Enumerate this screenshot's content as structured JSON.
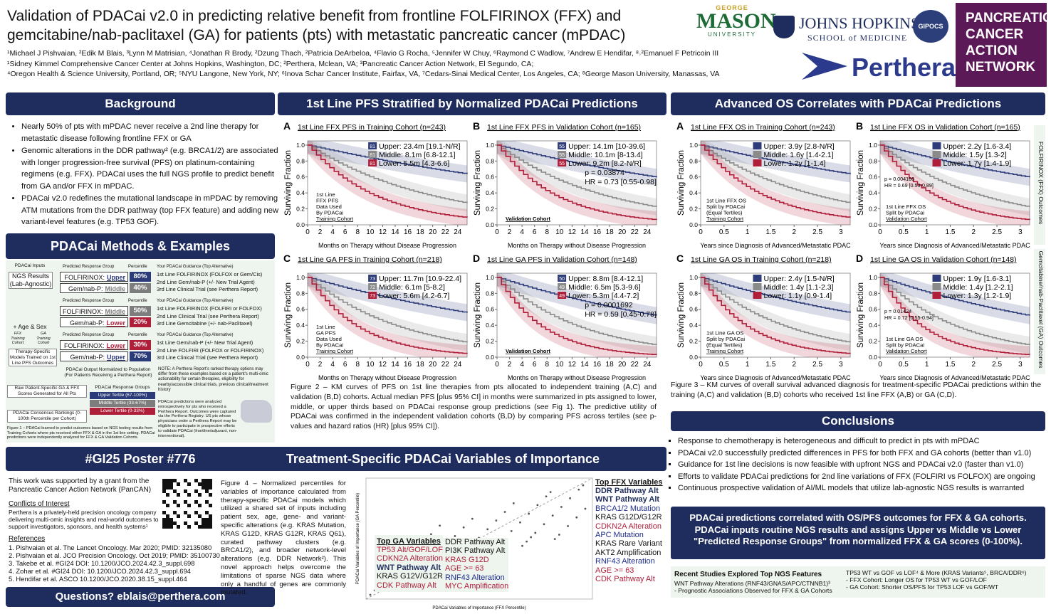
{
  "header": {
    "title_lines": [
      "Validation of PDACai v2.0 in predicting relative benefit from frontline FOLFIRINOX (FFX) and",
      "gemcitabine/nab-paclitaxel (GA) for patients (pts) with metastatic pancreatic cancer (mPDAC)"
    ],
    "author_lines": [
      "¹Michael J Pishvaian, ²Edik M Blais, ³Lynn M Matrisian, ⁴Jonathan R Brody, ²Dzung Thach, ²Patricia DeArbeloa, ⁴Flavio G Rocha, ⁵Jennifer W Chuy, ⁶Raymond C Wadlow, ⁷Andrew E Hendifar, ⁸˒²Emanuel F Petricoin III",
      "¹Sidney Kimmel Comprehensive Cancer Center at Johns Hopkins, Washington, DC; ²Perthera, Mclean, VA; ³Pancreatic Cancer Action Network, El Segundo, CA;",
      "⁴Oregon Health & Science University, Portland, OR; ⁵NYU Langone, New York, NY; ⁶Inova Schar Cancer Institute, Fairfax, VA, ⁷Cedars-Sinai Medical Center, Los Angeles, CA; ⁸George Mason University, Manassas, VA"
    ],
    "logos": {
      "gmu_top": "GEORGE",
      "gmu": "MASON",
      "gmu_sub": "UNIVERSITY",
      "jhu": "JOHNS HOPKINS",
      "jhu_sub": "SCHOOL of MEDICINE",
      "gipocs": "GIPOCS",
      "perthera": "Perthera",
      "pancan": [
        "PANCREATIC",
        "CANCER",
        "ACTION",
        "NETWORK"
      ]
    }
  },
  "background": {
    "title": "Background",
    "bullets": [
      "Nearly 50% of pts with mPDAC never receive a 2nd line therapy for metastatic disease following frontline FFX or GA",
      "Genomic alterations in the DDR pathway² (e.g. BRCA1/2) are associated with longer progression-free survival (PFS) on platinum-containing regimens (e.g. FFX). PDACai uses the full NGS profile to predict benefit from GA and/or FFX in mPDAC.",
      "PDACai v2.0 redefines the mutational landscape in mPDAC by removing ATM mutations from the DDR pathway (top FFX feature) and adding new variant-level features (e.g. TP53 GOF)."
    ]
  },
  "methods": {
    "title": "PDACai Methods & Examples",
    "flow": [
      "PDACai Inputs",
      "NGS Results (Lab-Agnostic)",
      "+ Age & Sex",
      "FFX Training Cohort",
      "GA Training Cohort",
      "Therapy-Specific Models Trained on 1st Line PFS Outcomes",
      "Raw Patient-Specific GA & FFX Scores Generated for All Pts",
      "PDACai Consensus Rankings (0-100th Percentile per Cohort)"
    ],
    "col_headers": [
      "Predicted Response Group",
      "Percentile",
      "Your PDACai Guidance (Top Alternative)"
    ],
    "examples": [
      {
        "rows": [
          {
            "label": "FOLFIRINOX:",
            "group": "Upper",
            "pct": "80%",
            "color": "#2b3a78"
          },
          {
            "label": "Gem/nab-P:",
            "group": "Middle",
            "pct": "40%",
            "color": "#7d7d7d"
          }
        ],
        "guidance": [
          "1st Line FOLFIRINOX (FOLFOX or Gem/Cis)",
          "2nd Line Gem/nab-P (+/- New Trial Agent)",
          "3rd Line Clinical Trial (see Perthera Report)"
        ]
      },
      {
        "rows": [
          {
            "label": "FOLFIRINOX:",
            "group": "Middle",
            "pct": "50%",
            "color": "#7d7d7d"
          },
          {
            "label": "Gem/nab-P:",
            "group": "Lower",
            "pct": "20%",
            "color": "#b01f3a"
          }
        ],
        "guidance": [
          "1st Line FOLFIRINOX (FOLFIRI or FOLFOX)",
          "2nd Line Clinical Trial (see Perthera Report)",
          "3rd Line Gemcitabine (+/- nab-Paclitaxel)"
        ]
      },
      {
        "rows": [
          {
            "label": "FOLFIRINOX:",
            "group": "Lower",
            "pct": "30%",
            "color": "#b01f3a"
          },
          {
            "label": "Gem/nab-P:",
            "group": "Upper",
            "pct": "70%",
            "color": "#2b3a78"
          }
        ],
        "guidance": [
          "1st Line Gem/nab-P (+/- New Trial Agent)",
          "2nd Line FOLFIRI (FOLFOX or FOLFIRINOX)",
          "3rd Line Clinical Trial (see Perthera Report)"
        ]
      }
    ],
    "output_note": "PDACai Output Normalized to Population (For Patients Receiving a Perthera Report)",
    "groups_title": "PDACai Response Groups",
    "groups": [
      {
        "text": "Upper Tertile (67-100%)",
        "color": "#2b3a78"
      },
      {
        "text": "Middle Tertile (33-67%)",
        "color": "#7d7d7d"
      },
      {
        "text": "Lower Tertile (0-33%)",
        "color": "#b01f3a"
      }
    ],
    "note": "NOTE: A Perthera Report's ranked therapy options may differ from these examples based on a patient's multi-omic actionability for certain therapies, eligibility for nearby/accessible clinical trials, previous clinical/treatment history",
    "predictions_note": "PDACai predictions were analyzed retrospectively for pts who received a Perthera Report. Outcomes were captured via the Perthera Registry. US pts whose physicians order a Perthera Report may be eligible to participate in prospective efforts to validate PDACai (frontline/adjuvant, non-interventional).",
    "caption": "Figure 1 – PDACai learned to predict outcomes based on NGS testing results from Training Cohorts where pts received either FFX & GA in the 1st line setting. PDACai predictions were independently analyzed for FFX & GA Validation Cohorts."
  },
  "pfs": {
    "title": "1st Line PFS Stratified by Normalized PDACai Predictions",
    "ylabel": "Surviving Fraction",
    "xlabel": "Months on Therapy without Disease Progression",
    "xlim": [
      0,
      25.5
    ],
    "xticks": [
      0,
      2,
      4,
      6,
      8,
      10,
      12,
      14,
      16,
      18,
      20,
      22,
      24
    ],
    "yticks": [
      {
        "value": 0,
        "label": "0.0"
      },
      {
        "value": 0.2,
        "label": "0.2"
      },
      {
        "value": 0.4,
        "label": "0.4"
      },
      {
        "value": 0.6,
        "label": "0.6"
      },
      {
        "value": 0.8,
        "label": "0.8"
      },
      {
        "value": 1,
        "label": "1.0"
      }
    ],
    "panels": [
      {
        "letter": "A",
        "title": "1st Line FFX PFS in Training Cohort (n=243)",
        "legend": [
          {
            "n": 81,
            "text": "Upper: 23.4m [19.1-N/R]"
          },
          {
            "n": 81,
            "text": "Middle: 8.1m [6.8-12.1]"
          },
          {
            "n": 81,
            "text": "Lower: 5.5m [4.3-6.6]"
          }
        ],
        "stats": [],
        "note": [
          "1st Line",
          "FFX PFS",
          "Data Used",
          "By PDACai",
          "Training Cohort"
        ]
      },
      {
        "letter": "B",
        "title": "1st Line FFX PFS in Validation Cohort (n=165)",
        "legend": [
          {
            "n": 55,
            "text": "Upper: 14.1m [10-39.6]"
          },
          {
            "n": 55,
            "text": "Middle: 10.1m [8-13.4]"
          },
          {
            "n": 55,
            "text": "Lower: 9.2m [8.2-N/R]"
          }
        ],
        "stats": [
          "p = 0.03874",
          "HR = 0.73 [0.55-0.98]"
        ],
        "note": [
          "Validation Cohort"
        ]
      },
      {
        "letter": "C",
        "title": "1st Line GA PFS in Training Cohort (n=218)",
        "legend": [
          {
            "n": 73,
            "text": "Upper: 11.7m [10.9-22.4]"
          },
          {
            "n": 72,
            "text": "Middle: 6.1m [5-8.2]"
          },
          {
            "n": 73,
            "text": "Lower: 5.6m [4.2-6.7]"
          }
        ],
        "stats": [],
        "note": [
          "1st Line",
          "GA PFS",
          "Data Used",
          "By PDACai",
          "Training Cohort"
        ]
      },
      {
        "letter": "D",
        "title": "1st Line GA PFS in Validation Cohort (n=148)",
        "legend": [
          {
            "n": 50,
            "text": "Upper: 8.8m [8.4-12.1]"
          },
          {
            "n": 49,
            "text": "Middle: 6.5m [5.3-9.6]"
          },
          {
            "n": 49,
            "text": "Lower: 5.3m [4.4-7.2]"
          }
        ],
        "stats": [
          "p = 0.0001692",
          "HR = 0.59 [0.45-0.78]"
        ],
        "note": [
          "Validation Cohort"
        ]
      }
    ],
    "caption": "Figure 2 – KM curves of PFS on 1st line therapies from pts allocated to independent training (A,C) and validation (B,D) cohorts. Actual median PFS [plus 95% CI] in months were summarized in pts assigned to lower, middle, or upper thirds based on PDACai response group predictions (see Fig 1). The predictive utility of PDACai was confirmed in the independent validation cohorts (B,D) by comparing PFS across tertiles (see p-values and hazard ratios (HR) [plus 95% CI])."
  },
  "os": {
    "title": "Advanced OS Correlates with PDACai Predictions",
    "ylabel": "Surviving Fraction",
    "xlabel": "Years since Diagnosis of Advanced/Metastatic PDAC",
    "xlim": [
      0,
      3.2
    ],
    "xticks": [
      0,
      0.5,
      1,
      1.5,
      2,
      2.5,
      3
    ],
    "yticks": [
      {
        "value": 0,
        "label": "0.0"
      },
      {
        "value": 0.2,
        "label": "0.2"
      },
      {
        "value": 0.4,
        "label": "0.4"
      },
      {
        "value": 0.6,
        "label": "0.6"
      },
      {
        "value": 0.8,
        "label": "0.8"
      },
      {
        "value": 1,
        "label": "1.0"
      }
    ],
    "side_labels": [
      "FOLFIRINOX (FFX) Outcomes",
      "Gemcitabine/nab-Paclitaxel (GA) Outcomes"
    ],
    "panels": [
      {
        "letter": "A",
        "title": "1st Line FFX OS in Training Cohort (n=243)",
        "legend": [
          {
            "text": "Upper: 3.9y [2.8-N/R]"
          },
          {
            "text": "Middle: 1.6y [1.4-2.1]"
          },
          {
            "text": "Lower: 1.2y [1-1.4]"
          }
        ],
        "stats": [],
        "note": [
          "1st Line FFX OS",
          "Split by PDACai",
          "(Equal Tertiles)",
          "Training Cohort"
        ]
      },
      {
        "letter": "B",
        "title": "1st Line FFX OS in Validation Cohort (n=165)",
        "legend": [
          {
            "text": "Upper: 2.2y [1.6-3.4]"
          },
          {
            "text": "Middle: 1.5y [1.3-2]"
          },
          {
            "text": "Lower: 1.7y [1.4-1.9]"
          }
        ],
        "stats": [
          "p = 0.004166",
          "HR = 0.69 [0.53-0.89]"
        ],
        "note": [
          "1st Line FFX OS",
          "Split by PDACai",
          "Validation Cohort"
        ]
      },
      {
        "letter": "C",
        "title": "1st Line GA OS in Training Cohort (n=218)",
        "legend": [
          {
            "text": "Upper: 2.4y [1.5-N/R]"
          },
          {
            "text": "Middle: 1.4y [1.1-2.3]"
          },
          {
            "text": "Lower: 1.1y [0.9-1.4]"
          }
        ],
        "stats": [],
        "note": [
          "1st Line GA OS",
          "Split by PDACai",
          "(Equal Tertiles)",
          "Training Cohort"
        ]
      },
      {
        "letter": "D",
        "title": "1st Line GA OS in Validation Cohort (n=148)",
        "legend": [
          {
            "text": "Upper: 1.9y [1.6-3.1]"
          },
          {
            "text": "Middle: 1.4y [1.2-2.1]"
          },
          {
            "text": "Lower: 1.3y [1.2-1.9]"
          }
        ],
        "stats": [
          "p = 0.01424",
          "HR = 0.72 [0.55-0.94]"
        ],
        "note": [
          "1st Line GA OS",
          "Split by PDACai",
          "Validation Cohort"
        ]
      }
    ],
    "caption": "Figure 3 – KM curves of overall survival advanced diagnosis for treatment-specific PDACai predictions within the training (A,C) and validation (B,D) cohorts who received 1st line FFX (A,B) or GA (C,D)."
  },
  "conclusions": {
    "title": "Conclusions",
    "bullets": [
      "Response to chemotherapy is heterogeneous and difficult to predict in pts with mPDAC",
      "PDACai v2.0 successfully predicted differences in PFS for both FFX and GA cohorts (better than v1.0)",
      "Guidance for 1st line decisions is now feasible with upfront NGS and PDACai v2.0 (faster than v1.0)",
      "Efforts to validate PDACai predictions for 2nd line variations of FFX (FOLFIRI vs FOLFOX) are ongoing",
      "Continuous prospective validation of AI/ML models that utilize lab-agnostic NGS results is warranted"
    ],
    "highlight": "PDACai predictions correlated with OS/PFS outcomes for FFX & GA cohorts. PDACai inputs routine NGS results and assigns Upper vs Middle vs Lower \"Predicted Response Groups\" from normalized FFX & GA scores (0-100%).",
    "recent_title": "Recent Studies Explored Top NGS Features",
    "recent_left": [
      "WNT Pathway Alterations (RNF43/GNAS/APC/CTNNB1)³",
      "- Prognostic Associations Observed for FFX & GA Cohorts"
    ],
    "recent_right": [
      "TP53 WT vs GOF vs LOF⁴ & More (KRAS Variants⁵, BRCA/DDR⁶)",
      "- FFX Cohort: Longer OS for TP53 WT vs GOF/LOF",
      "- GA Cohort: Shorter OS/PFS for TP53 LOF vs GOF/WT"
    ]
  },
  "variables": {
    "title": "Treatment-Specific PDACai Variables of Importance",
    "caption": "Figure 4 – Normalized percentiles for variables of importance calculated from therapy-specific PDACai models which utilized a shared set of inputs including patient sex, age, gene- and variant-specific alterations (e.g. KRAS Mutation, KRAS G12D, KRAS G12R, KRAS Q61), curated pathway clusters (e.g. BRCA1/2), and broader network-level alterations (e.g. DDR Network²). This novel approach helps overcome the limitations of sparse NGS data where only a handful of genes are commonly mutated.",
    "x_label": "PDACai Variables of Importance (FFX Percentile)",
    "y_label": "PDACai Variables of Importance (GA Percentile)",
    "ga_title": "Top GA Variables",
    "ga": [
      {
        "text": "TP53 Alt/GOF/LOF",
        "color": "#b01f3a"
      },
      {
        "text": "CDKN2A Alteration",
        "color": "#b01f3a"
      },
      {
        "text": "WNT Pathway Alt",
        "color": "#1f2d5e",
        "bold": true
      },
      {
        "text": "KRAS G12V/G12R",
        "color": "#111111"
      },
      {
        "text": "CDK Pathway Alt",
        "color": "#b01f3a"
      }
    ],
    "shared": [
      {
        "text": "DDR Pathway Alt",
        "color": "#111111"
      },
      {
        "text": "PI3K Pathway Alt",
        "color": "#111111"
      },
      {
        "text": "KRAS G12D",
        "color": "#b01f3a"
      },
      {
        "text": "AGE >= 63",
        "color": "#b01f3a"
      },
      {
        "text": "RNF43 Alteration",
        "color": "#1f2d8e"
      },
      {
        "text": "MYC Amplification",
        "color": "#b01f3a"
      }
    ],
    "ffx_title": "Top FFX Variables",
    "ffx": [
      {
        "text": "DDR Pathway Alt",
        "color": "#1f2d5e",
        "bold": true
      },
      {
        "text": "WNT Pathway Alt",
        "color": "#1f2d5e",
        "bold": true
      },
      {
        "text": "BRCA1/2 Mutation",
        "color": "#1f2d8e"
      },
      {
        "text": "KRAS G12D/G12R",
        "color": "#111111"
      },
      {
        "text": "CDKN2A Alteration",
        "color": "#b01f3a"
      },
      {
        "text": "APC Mutation",
        "color": "#1f2d8e"
      },
      {
        "text": "KRAS Rare Variant",
        "color": "#111111"
      },
      {
        "text": "AKT2 Amplification",
        "color": "#111111"
      },
      {
        "text": "RNF43 Alteration",
        "color": "#1f2d8e"
      },
      {
        "text": "AGE >= 63",
        "color": "#b01f3a"
      },
      {
        "text": "CDK Pathway Alt",
        "color": "#b01f3a"
      }
    ]
  },
  "poster": {
    "title": "#GI25 Poster #776",
    "funding": "This work was supported by a grant from the Pancreatic Cancer Action Network (PanCAN)",
    "coi_title": "Conflicts of Interest",
    "coi": "Perthera is a privately-held precision oncology company delivering multi-omic insights and real-world outcomes to support investigators, sponsors, and health systems¹",
    "refs_title": "References",
    "refs": [
      "1. Pishvaian et al. The Lancet Oncology. Mar 2020; PMID: 32135080",
      "2. Pishvaian et al. JCO Precision Oncology. Oct 2019; PMID: 35100730",
      "3. Takebe et al. #GI24 DOI: 10.1200/JCO.2024.42.3_suppl.698",
      "4. Zohar et al. #GI24 DOI: 10.1200/JCO.2024.42.3_suppl.694",
      "5. Hendifar et al. ASCO 10.1200/JCO.2020.38.15_suppl.464"
    ],
    "questions": "Questions? eblais@perthera.com"
  }
}
